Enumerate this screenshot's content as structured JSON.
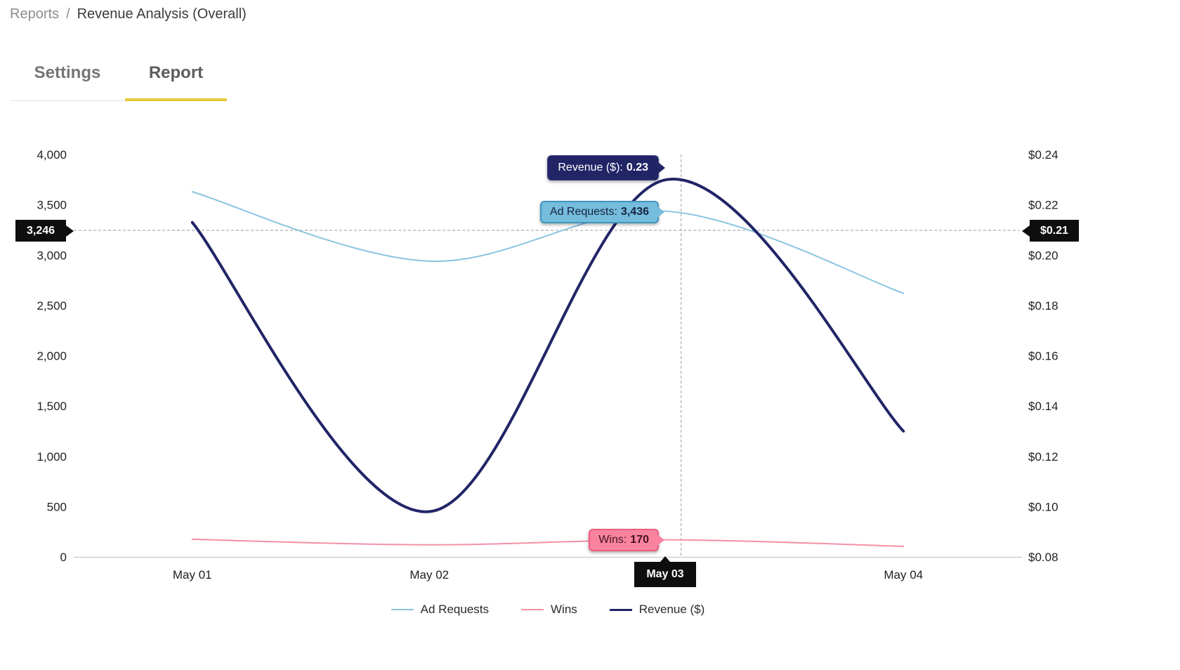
{
  "breadcrumb": {
    "section": "Reports",
    "separator": "/",
    "current": "Revenue Analysis (Overall)"
  },
  "tabs": [
    {
      "label": "Settings",
      "active": false
    },
    {
      "label": "Report",
      "active": true
    }
  ],
  "tooltips": {
    "revenue": {
      "label": "Revenue ($):",
      "value": "0.23"
    },
    "ad_requests": {
      "label": "Ad Requests:",
      "value": "3,436"
    },
    "wins": {
      "label": "Wins:",
      "value": "170"
    }
  },
  "crosshair_labels": {
    "left": "3,246",
    "right": "$0.21",
    "bottom": "May 03"
  },
  "colors": {
    "accent_yellow": "#E9C837",
    "navy": "#212566",
    "blue_line": "#8AC5E2",
    "blue_tooltip_fill": "#76BCDC",
    "blue_tooltip_border": "#3F96C0",
    "pink_line": "#F490A6",
    "pink_tooltip_fill": "#F9839F",
    "pink_tooltip_border": "#EF5C83",
    "marker_black": "#0E0E0E",
    "crosshair_gray": "#999999"
  },
  "chart_data": {
    "type": "line",
    "x": [
      "May 01",
      "May 02",
      "May 03",
      "May 04"
    ],
    "series": [
      {
        "name": "Ad Requests",
        "axis": "left",
        "color": "#8AC5E2",
        "width": 2,
        "values": [
          3630,
          2940,
          3436,
          2620
        ]
      },
      {
        "name": "Wins",
        "axis": "left",
        "color": "#F490A6",
        "width": 2,
        "values": [
          175,
          120,
          170,
          105
        ]
      },
      {
        "name": "Revenue ($)",
        "axis": "right",
        "color": "#212566",
        "width": 4,
        "values": [
          0.213,
          0.098,
          0.23,
          0.13
        ]
      }
    ],
    "left_axis": {
      "min": 0,
      "max": 4000,
      "step": 500,
      "ticks": [
        "0",
        "500",
        "1,000",
        "1,500",
        "2,000",
        "2,500",
        "3,000",
        "3,500",
        "4,000"
      ]
    },
    "right_axis": {
      "min": 0.08,
      "max": 0.24,
      "step": 0.02,
      "ticks": [
        "$0.08",
        "$0.10",
        "$0.12",
        "$0.14",
        "$0.16",
        "$0.18",
        "$0.20",
        "$0.22",
        "$0.24"
      ]
    },
    "crosshair": {
      "left_value": 3246,
      "left_label": "3,246",
      "right_label": "$0.21",
      "x_label": "May 03"
    },
    "legend_position": "bottom",
    "grid": false
  }
}
